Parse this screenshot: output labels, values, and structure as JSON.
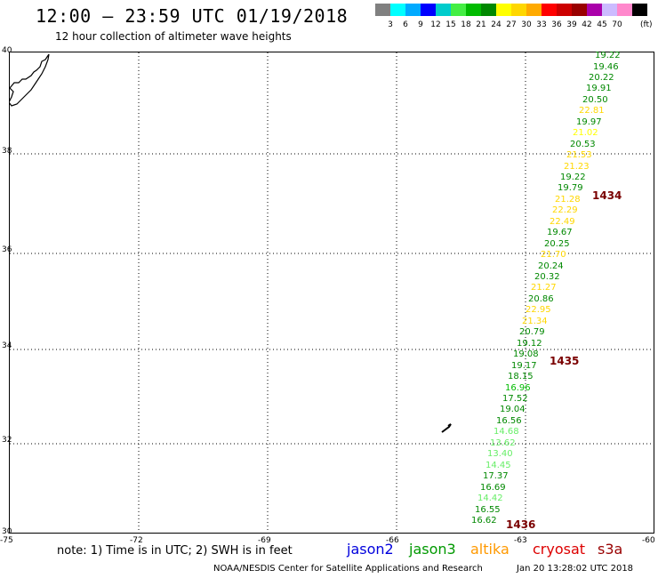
{
  "header": {
    "title": "12:00 – 23:59 UTC 01/19/2018",
    "subtitle": "12 hour collection of altimeter wave heights"
  },
  "color_scale": {
    "unit": "(ft)",
    "colors": [
      "#808080",
      "#00ffff",
      "#00aaff",
      "#0000ff",
      "#00cccc",
      "#44ee44",
      "#00bb00",
      "#008800",
      "#ffff00",
      "#ffd700",
      "#ffaa00",
      "#ff0000",
      "#cc0000",
      "#990000",
      "#aa00aa",
      "#ccbbff",
      "#ff88cc",
      "#000000"
    ],
    "labels": [
      "3",
      "6",
      "9",
      "12",
      "15",
      "18",
      "21",
      "24",
      "27",
      "30",
      "33",
      "36",
      "39",
      "42",
      "45",
      "70"
    ]
  },
  "axes": {
    "lat_labels": [
      "40",
      "38",
      "36",
      "34",
      "32",
      "30"
    ],
    "lon_labels": [
      "-75",
      "-72",
      "-69",
      "-66",
      "-63",
      "-60"
    ]
  },
  "track": [
    {
      "text": "19.22",
      "color": "#008800"
    },
    {
      "text": "19.46",
      "color": "#008800"
    },
    {
      "text": "20.22",
      "color": "#008800"
    },
    {
      "text": "19.91",
      "color": "#008800"
    },
    {
      "text": "20.50",
      "color": "#008800"
    },
    {
      "text": "22.81",
      "color": "#ffd700"
    },
    {
      "text": "19.97",
      "color": "#008800"
    },
    {
      "text": "21.02",
      "color": "#ffff00"
    },
    {
      "text": "20.53",
      "color": "#008800"
    },
    {
      "text": "21.53",
      "color": "#ffd700"
    },
    {
      "text": "21.23",
      "color": "#ffd700"
    },
    {
      "text": "19.22",
      "color": "#008800"
    },
    {
      "text": "19.79",
      "color": "#008800"
    },
    {
      "text": "21.28",
      "color": "#ffd700"
    },
    {
      "text": "22.29",
      "color": "#ffd700"
    },
    {
      "text": "22.49",
      "color": "#ffd700"
    },
    {
      "text": "19.67",
      "color": "#008800"
    },
    {
      "text": "20.25",
      "color": "#008800"
    },
    {
      "text": "21.70",
      "color": "#ffd700"
    },
    {
      "text": "20.24",
      "color": "#008800"
    },
    {
      "text": "20.32",
      "color": "#008800"
    },
    {
      "text": "21.27",
      "color": "#ffd700"
    },
    {
      "text": "20.86",
      "color": "#008800"
    },
    {
      "text": "22.95",
      "color": "#ffd700"
    },
    {
      "text": "21.34",
      "color": "#ffd700"
    },
    {
      "text": "20.79",
      "color": "#008800"
    },
    {
      "text": "19.12",
      "color": "#008800"
    },
    {
      "text": "19.08",
      "color": "#008800"
    },
    {
      "text": "19.17",
      "color": "#008800"
    },
    {
      "text": "18.15",
      "color": "#008800"
    },
    {
      "text": "16.96",
      "color": "#00bb00"
    },
    {
      "text": "17.52",
      "color": "#008800"
    },
    {
      "text": "19.04",
      "color": "#008800"
    },
    {
      "text": "16.56",
      "color": "#008800"
    },
    {
      "text": "14.68",
      "color": "#66ee66"
    },
    {
      "text": "13.62",
      "color": "#66ee66"
    },
    {
      "text": "13.40",
      "color": "#66ee66"
    },
    {
      "text": "14.45",
      "color": "#66ee66"
    },
    {
      "text": "17.37",
      "color": "#008800"
    },
    {
      "text": "16.69",
      "color": "#008800"
    },
    {
      "text": "14.42",
      "color": "#66ee66"
    },
    {
      "text": "16.55",
      "color": "#008800"
    },
    {
      "text": "16.62",
      "color": "#008800"
    }
  ],
  "time_labels": [
    "1434",
    "1435",
    "1436"
  ],
  "note": "note:  1) Time is in UTC; 2) SWH is in feet",
  "legend": [
    {
      "text": "jason2",
      "color": "#0000dd"
    },
    {
      "text": "jason3",
      "color": "#009900"
    },
    {
      "text": "altika",
      "color": "#ff9900"
    },
    {
      "text": "cryosat",
      "color": "#dd0000"
    },
    {
      "text": "s3a",
      "color": "#990000"
    }
  ],
  "footer": {
    "credit": "NOAA/NESDIS Center for Satellite Applications and Research",
    "timestamp": "Jan 20 13:28:02 UTC 2018"
  }
}
